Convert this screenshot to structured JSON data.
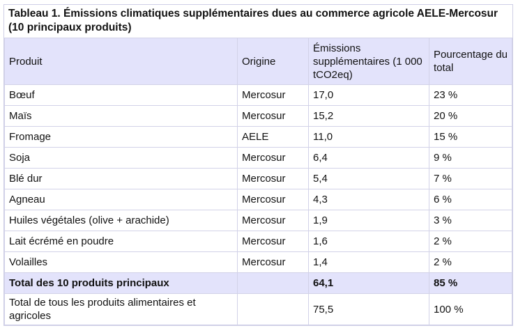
{
  "caption": "Tableau 1. Émissions climatiques supplémentaires dues au commerce agricole AELE-Mercosur (10 principaux produits)",
  "headers": {
    "produit": "Produit",
    "origine": "Origine",
    "emissions": "Émissions supplémentaires (1 000 tCO2eq)",
    "pourcentage": "Pourcentage du total"
  },
  "rows": [
    {
      "produit": "Bœuf",
      "origine": "Mercosur",
      "emissions": "17,0",
      "pourcentage": "23 %"
    },
    {
      "produit": "Maïs",
      "origine": "Mercosur",
      "emissions": "15,2",
      "pourcentage": "20 %"
    },
    {
      "produit": "Fromage",
      "origine": "AELE",
      "emissions": "11,0",
      "pourcentage": "15 %"
    },
    {
      "produit": "Soja",
      "origine": "Mercosur",
      "emissions": "6,4",
      "pourcentage": "9 %"
    },
    {
      "produit": "Blé dur",
      "origine": "Mercosur",
      "emissions": "5,4",
      "pourcentage": "7 %"
    },
    {
      "produit": "Agneau",
      "origine": "Mercosur",
      "emissions": "4,3",
      "pourcentage": "6 %"
    },
    {
      "produit": "Huiles végétales (olive + arachide)",
      "origine": "Mercosur",
      "emissions": "1,9",
      "pourcentage": "3 %"
    },
    {
      "produit": "Lait écrémé en poudre",
      "origine": "Mercosur",
      "emissions": "1,6",
      "pourcentage": "2 %"
    },
    {
      "produit": "Volailles",
      "origine": "Mercosur",
      "emissions": "1,4",
      "pourcentage": "2 %"
    }
  ],
  "total_top10": {
    "label": "Total des 10 produits principaux",
    "origine": "",
    "emissions": "64,1",
    "pourcentage": "85 %"
  },
  "total_all": {
    "label": "Total de tous les produits alimentaires et agricoles",
    "origine": "",
    "emissions": "75,5",
    "pourcentage": "100 %"
  },
  "colors": {
    "header_bg": "#e3e3fb",
    "border": "#d2d2e8"
  }
}
